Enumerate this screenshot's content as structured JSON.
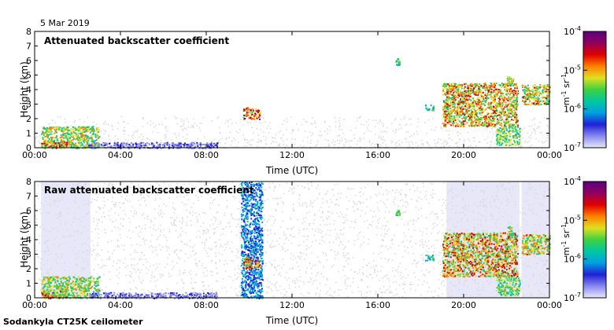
{
  "date_label": "5 Mar 2019",
  "footer_label": "Sodankyla CT25K ceilometer",
  "colors": {
    "colormap": [
      "#e8e8f8",
      "#8888f0",
      "#2020d8",
      "#00a0e0",
      "#00c8a0",
      "#40d040",
      "#e0e020",
      "#ff8000",
      "#e00000",
      "#900060",
      "#5a0080"
    ],
    "background_noise": "#d8d8d8",
    "mask": "#d4d4f4"
  },
  "chart_data": [
    {
      "type": "heatmap",
      "title": "Attenuated backscatter coefficient",
      "xlabel": "Time (UTC)",
      "ylabel": "Height (km)",
      "xlim": [
        0,
        24
      ],
      "ylim": [
        0,
        8
      ],
      "x_tick_labels": [
        "00:00",
        "04:00",
        "08:00",
        "12:00",
        "16:00",
        "20:00",
        "00:00"
      ],
      "y_tick_labels": [
        "0",
        "1",
        "2",
        "3",
        "4",
        "5",
        "6",
        "7",
        "8"
      ],
      "colorbar": {
        "scale": "log",
        "range": [
          1e-07,
          0.0001
        ],
        "tick_labels": [
          "10-7",
          "10-6",
          "10-5",
          "10-4"
        ],
        "unit": "m-1 sr-1"
      },
      "features": [
        {
          "name": "boundary layer aerosol",
          "t_start": 0.3,
          "t_end": 3.0,
          "h_base": 0.0,
          "h_top": 1.5,
          "intensity": 0.6
        },
        {
          "name": "lowest layer",
          "t_start": 0.3,
          "t_end": 1.5,
          "h_base": 0.0,
          "h_top": 0.5,
          "intensity": 0.75
        },
        {
          "name": "low aerosol band",
          "t_start": 2.5,
          "t_end": 8.5,
          "h_base": 0.0,
          "h_top": 0.4,
          "intensity": 0.15
        },
        {
          "name": "cloud",
          "t_start": 9.7,
          "t_end": 10.5,
          "h_base": 2.0,
          "h_top": 2.8,
          "intensity": 0.8
        },
        {
          "name": "cloud",
          "t_start": 16.8,
          "t_end": 17.0,
          "h_base": 5.7,
          "h_top": 6.2,
          "intensity": 0.5
        },
        {
          "name": "cloud",
          "t_start": 18.2,
          "t_end": 18.6,
          "h_base": 2.6,
          "h_top": 3.0,
          "intensity": 0.45
        },
        {
          "name": "cloud system",
          "t_start": 19.0,
          "t_end": 22.5,
          "h_base": 1.5,
          "h_top": 4.5,
          "intensity": 0.7
        },
        {
          "name": "descending cloud base",
          "t_start": 21.5,
          "t_end": 22.6,
          "h_base": 0.2,
          "h_top": 1.5,
          "intensity": 0.55
        },
        {
          "name": "cloud",
          "t_start": 22.0,
          "t_end": 22.3,
          "h_base": 4.3,
          "h_top": 5.0,
          "intensity": 0.6
        },
        {
          "name": "cloud",
          "t_start": 22.7,
          "t_end": 24.0,
          "h_base": 3.0,
          "h_top": 4.4,
          "intensity": 0.65
        }
      ]
    },
    {
      "type": "heatmap",
      "title": "Raw attenuated backscatter coefficient",
      "xlabel": "Time (UTC)",
      "ylabel": "Height (km)",
      "xlim": [
        0,
        24
      ],
      "ylim": [
        0,
        8
      ],
      "x_tick_labels": [
        "00:00",
        "04:00",
        "08:00",
        "12:00",
        "16:00",
        "20:00",
        "00:00"
      ],
      "y_tick_labels": [
        "0",
        "1",
        "2",
        "3",
        "4",
        "5",
        "6",
        "7",
        "8"
      ],
      "colorbar": {
        "scale": "log",
        "range": [
          1e-07,
          0.0001
        ],
        "tick_labels": [
          "10-7",
          "10-6",
          "10-5",
          "10-4"
        ],
        "unit": "m-1 sr-1"
      },
      "features": [
        {
          "name": "boundary layer aerosol",
          "t_start": 0.3,
          "t_end": 3.0,
          "h_base": 0.0,
          "h_top": 1.5,
          "intensity": 0.6
        },
        {
          "name": "lowest layer",
          "t_start": 0.3,
          "t_end": 1.5,
          "h_base": 0.0,
          "h_top": 0.5,
          "intensity": 0.75
        },
        {
          "name": "low aerosol band",
          "t_start": 2.5,
          "t_end": 8.5,
          "h_base": 0.0,
          "h_top": 0.4,
          "intensity": 0.15
        },
        {
          "name": "precipitation column",
          "t_start": 9.6,
          "t_end": 10.6,
          "h_base": 0.0,
          "h_top": 8.0,
          "intensity": 0.3
        },
        {
          "name": "cloud",
          "t_start": 9.7,
          "t_end": 10.5,
          "h_base": 2.0,
          "h_top": 2.8,
          "intensity": 0.8
        },
        {
          "name": "cloud",
          "t_start": 16.8,
          "t_end": 17.0,
          "h_base": 5.7,
          "h_top": 6.2,
          "intensity": 0.5
        },
        {
          "name": "cloud",
          "t_start": 18.2,
          "t_end": 18.6,
          "h_base": 2.6,
          "h_top": 3.0,
          "intensity": 0.45
        },
        {
          "name": "cloud system",
          "t_start": 19.0,
          "t_end": 22.5,
          "h_base": 1.5,
          "h_top": 4.5,
          "intensity": 0.7
        },
        {
          "name": "descending cloud base",
          "t_start": 21.5,
          "t_end": 22.6,
          "h_base": 0.2,
          "h_top": 1.5,
          "intensity": 0.55
        },
        {
          "name": "cloud",
          "t_start": 22.0,
          "t_end": 22.3,
          "h_base": 4.3,
          "h_top": 5.0,
          "intensity": 0.6
        },
        {
          "name": "cloud",
          "t_start": 22.7,
          "t_end": 24.0,
          "h_base": 3.0,
          "h_top": 4.4,
          "intensity": 0.65
        }
      ]
    }
  ]
}
